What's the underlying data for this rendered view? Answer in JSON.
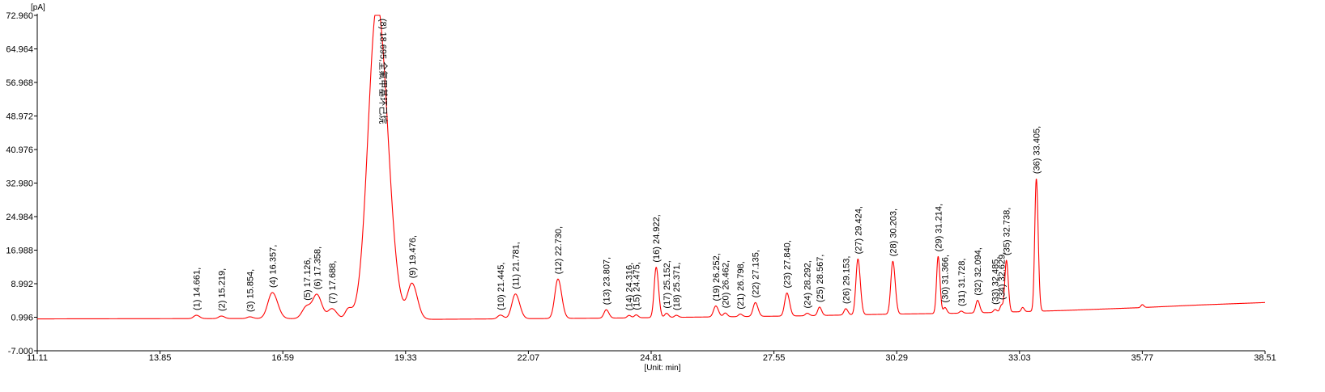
{
  "chart_data": {
    "type": "line",
    "title": "",
    "y_unit": "[pA]",
    "x_unit": "[Unit: min]",
    "xlim": [
      11.11,
      38.51
    ],
    "ylim": [
      -7.0,
      72.96
    ],
    "x_ticks": [
      "11.11",
      "13.85",
      "16.59",
      "19.33",
      "22.07",
      "24.81",
      "27.55",
      "30.29",
      "33.03",
      "35.77",
      "38.51"
    ],
    "y_ticks": [
      "-7.000",
      "0.996",
      "8.992",
      "16.988",
      "24.984",
      "32.980",
      "40.976",
      "48.972",
      "56.968",
      "64.964",
      "72.960"
    ],
    "grid": false,
    "line_color": "#ff0000",
    "baseline": [
      [
        11.11,
        0.6
      ],
      [
        16.0,
        0.7
      ],
      [
        20.0,
        0.5
      ],
      [
        24.0,
        0.8
      ],
      [
        28.0,
        1.3
      ],
      [
        30.0,
        1.7
      ],
      [
        32.0,
        2.0
      ],
      [
        34.0,
        2.6
      ],
      [
        35.77,
        3.3
      ],
      [
        37.0,
        3.9
      ],
      [
        38.51,
        4.5
      ]
    ],
    "peaks": [
      {
        "id": "1",
        "rt": 14.661,
        "height": 0.8,
        "width": 0.06,
        "label": "(1) 14.661,"
      },
      {
        "id": "2",
        "rt": 15.219,
        "height": 0.6,
        "width": 0.06,
        "label": "(2) 15.219,"
      },
      {
        "id": "3",
        "rt": 15.854,
        "height": 0.4,
        "width": 0.06,
        "label": "(3) 15.854,"
      },
      {
        "id": "4",
        "rt": 16.357,
        "height": 6.2,
        "width": 0.1,
        "label": "(4) 16.357,"
      },
      {
        "id": "5",
        "rt": 17.126,
        "height": 3.0,
        "width": 0.1,
        "label": "(5) 17.126,"
      },
      {
        "id": "6",
        "rt": 17.358,
        "height": 5.4,
        "width": 0.09,
        "label": "(6) 17.358,"
      },
      {
        "id": "7",
        "rt": 17.688,
        "height": 2.4,
        "width": 0.09,
        "label": "(7) 17.688,"
      },
      {
        "id": "8",
        "rt": 18.695,
        "height": 75.0,
        "width": 0.2,
        "label": "(8) 18.695,全氟甲基环己烷"
      },
      {
        "id": "9",
        "rt": 19.476,
        "height": 8.3,
        "width": 0.1,
        "label": "(9) 19.476,"
      },
      {
        "id": "10",
        "rt": 21.445,
        "height": 0.9,
        "width": 0.06,
        "label": "(10) 21.445,"
      },
      {
        "id": "11",
        "rt": 21.781,
        "height": 5.9,
        "width": 0.08,
        "label": "(11) 21.781,"
      },
      {
        "id": "12",
        "rt": 22.73,
        "height": 9.4,
        "width": 0.07,
        "label": "(12) 22.730,"
      },
      {
        "id": "13",
        "rt": 23.807,
        "height": 2.0,
        "width": 0.05,
        "label": "(13) 23.807,"
      },
      {
        "id": "14",
        "rt": 24.316,
        "height": 0.6,
        "width": 0.04,
        "label": "(14) 24.316,"
      },
      {
        "id": "15",
        "rt": 24.475,
        "height": 0.7,
        "width": 0.04,
        "label": "(15) 24.475,"
      },
      {
        "id": "16",
        "rt": 24.922,
        "height": 12.0,
        "width": 0.045,
        "label": "(16) 24.922,"
      },
      {
        "id": "17",
        "rt": 25.152,
        "height": 1.0,
        "width": 0.04,
        "label": "(17) 25.152,"
      },
      {
        "id": "18",
        "rt": 25.371,
        "height": 0.5,
        "width": 0.04,
        "label": "(18) 25.371,"
      },
      {
        "id": "19",
        "rt": 26.252,
        "height": 2.6,
        "width": 0.05,
        "label": "(19) 26.252,"
      },
      {
        "id": "20",
        "rt": 26.462,
        "height": 0.9,
        "width": 0.04,
        "label": "(20) 26.462,"
      },
      {
        "id": "21",
        "rt": 26.798,
        "height": 0.6,
        "width": 0.04,
        "label": "(21) 26.798,"
      },
      {
        "id": "22",
        "rt": 27.135,
        "height": 3.3,
        "width": 0.05,
        "label": "(22) 27.135,"
      },
      {
        "id": "23",
        "rt": 27.84,
        "height": 5.5,
        "width": 0.05,
        "label": "(23) 27.840,"
      },
      {
        "id": "24",
        "rt": 28.292,
        "height": 0.6,
        "width": 0.04,
        "label": "(24) 28.292,"
      },
      {
        "id": "25",
        "rt": 28.567,
        "height": 2.0,
        "width": 0.04,
        "label": "(25) 28.567,"
      },
      {
        "id": "26",
        "rt": 29.153,
        "height": 1.5,
        "width": 0.04,
        "label": "(26) 29.153,"
      },
      {
        "id": "27",
        "rt": 29.424,
        "height": 13.3,
        "width": 0.045,
        "label": "(27) 29.424,"
      },
      {
        "id": "28",
        "rt": 30.203,
        "height": 12.6,
        "width": 0.045,
        "label": "(28) 30.203,"
      },
      {
        "id": "29",
        "rt": 31.214,
        "height": 13.6,
        "width": 0.035,
        "label": "(29) 31.214,"
      },
      {
        "id": "30",
        "rt": 31.366,
        "height": 1.4,
        "width": 0.035,
        "label": "(30) 31.366,"
      },
      {
        "id": "31",
        "rt": 31.728,
        "height": 0.5,
        "width": 0.035,
        "label": "(31) 31.728,"
      },
      {
        "id": "32",
        "rt": 32.094,
        "height": 3.0,
        "width": 0.04,
        "label": "(32) 32.094,"
      },
      {
        "id": "33",
        "rt": 32.485,
        "height": 0.7,
        "width": 0.035,
        "label": "(33) 32.485,"
      },
      {
        "id": "34",
        "rt": 32.629,
        "height": 1.7,
        "width": 0.035,
        "label": "(34) 32.629,"
      },
      {
        "id": "35",
        "rt": 32.738,
        "height": 12.3,
        "width": 0.035,
        "label": "(35) 32.738,"
      },
      {
        "id": "36",
        "rt": 33.405,
        "height": 31.6,
        "width": 0.035,
        "label": "(36) 33.405,"
      }
    ],
    "extra_peaks": [
      {
        "rt": 18.05,
        "height": 2.2,
        "width": 0.07
      },
      {
        "rt": 33.1,
        "height": 1.0,
        "width": 0.03
      },
      {
        "rt": 35.77,
        "height": 0.7,
        "width": 0.03
      }
    ],
    "clip_top": 72.96
  }
}
